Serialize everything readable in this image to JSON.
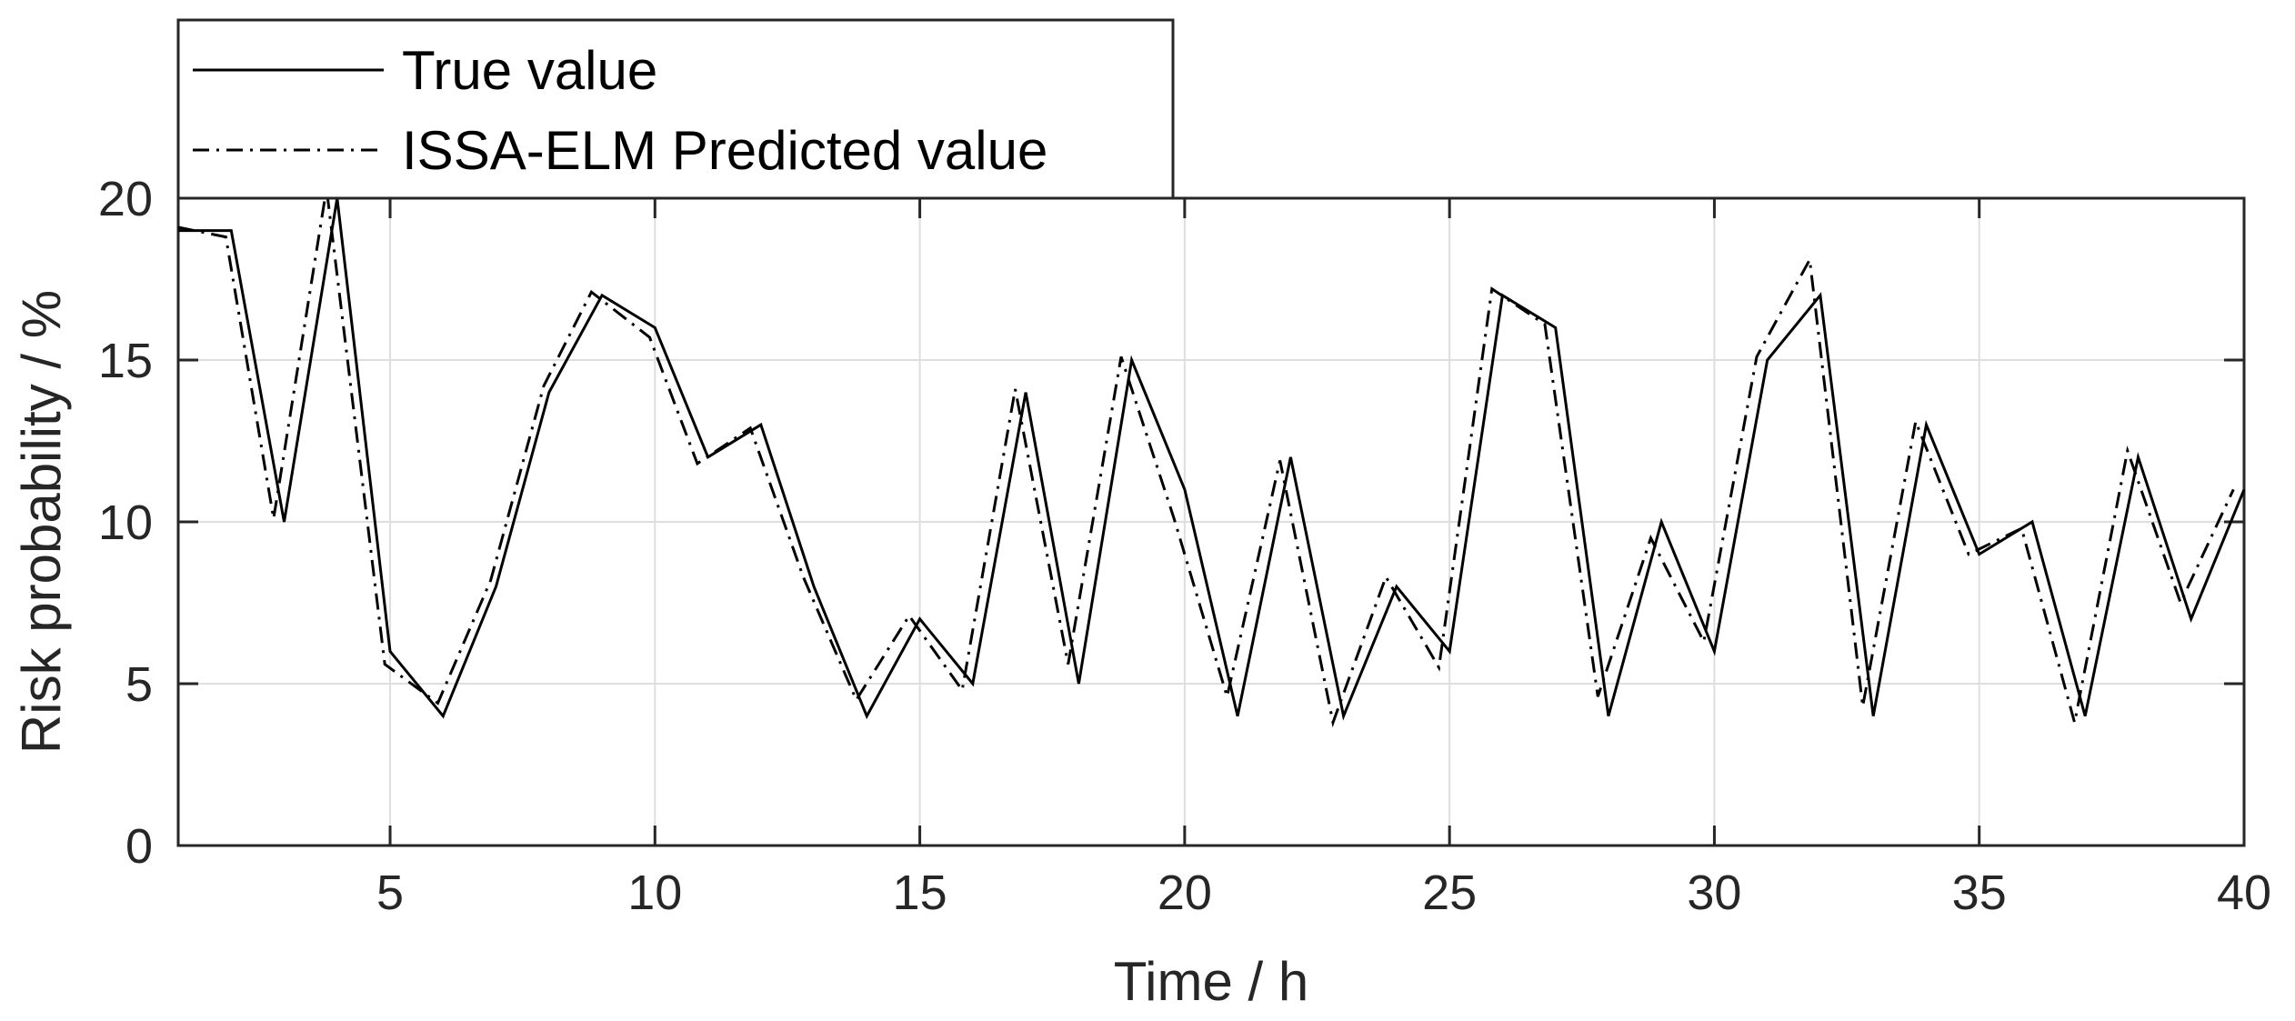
{
  "chart_data": {
    "type": "line",
    "title": "",
    "xlabel": "Time / h",
    "ylabel": "Risk probability / %",
    "xlim": [
      1,
      40
    ],
    "ylim": [
      0,
      20
    ],
    "xticks": [
      5,
      10,
      15,
      20,
      25,
      30,
      35,
      40
    ],
    "yticks": [
      0,
      5,
      10,
      15,
      20
    ],
    "grid": true,
    "legend_position": "top-left, outside above plot",
    "series": [
      {
        "name": "True value",
        "style": "solid",
        "color": "#000000",
        "x": [
          1,
          2,
          3,
          4,
          5,
          6,
          7,
          8,
          9,
          10,
          11,
          12,
          13,
          14,
          15,
          16,
          17,
          18,
          19,
          20,
          21,
          22,
          23,
          24,
          25,
          26,
          27,
          28,
          29,
          30,
          31,
          32,
          33,
          34,
          35,
          36,
          37,
          38,
          39,
          40
        ],
        "values": [
          19,
          19,
          10,
          20,
          6,
          4,
          8,
          14,
          17,
          16,
          12,
          13,
          8,
          4,
          7,
          5,
          14,
          5,
          15,
          11,
          4,
          12,
          4,
          8,
          6,
          17,
          16,
          4,
          10,
          6,
          15,
          17,
          4,
          13,
          9,
          10,
          4,
          12,
          7,
          11
        ]
      },
      {
        "name": "ISSA-ELM Predicted value",
        "style": "dashdot",
        "color": "#000000",
        "x": [
          1,
          1.9,
          2.8,
          3.8,
          4.9,
          5.9,
          6.9,
          7.9,
          8.8,
          9.9,
          10.8,
          11.8,
          12.8,
          13.8,
          14.8,
          15.8,
          16.8,
          17.8,
          18.8,
          19.8,
          20.8,
          21.8,
          22.8,
          23.8,
          24.8,
          25.8,
          26.8,
          27.8,
          28.8,
          29.8,
          30.8,
          31.8,
          32.8,
          33.8,
          34.8,
          35.8,
          36.8,
          37.8,
          38.8,
          39.8
        ],
        "values": [
          19.1,
          18.8,
          10.1,
          20.3,
          5.6,
          4.4,
          8.2,
          14.2,
          17.1,
          15.7,
          11.8,
          12.9,
          8.3,
          4.5,
          7.1,
          4.8,
          14.1,
          5.6,
          15.1,
          10.1,
          4.6,
          11.9,
          3.8,
          8.3,
          5.5,
          17.2,
          16.1,
          4.6,
          9.5,
          6.3,
          15.1,
          18.1,
          4.3,
          13.1,
          9.0,
          9.8,
          3.8,
          12.2,
          7.5,
          11.0
        ]
      }
    ]
  }
}
